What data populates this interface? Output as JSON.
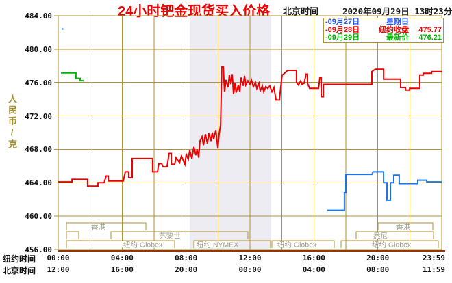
{
  "header": {
    "title": "24小时钯金现货买入价格",
    "tz_label": "北京时间",
    "datetime": "2020年09月29日 13时23分"
  },
  "legend": {
    "rows": [
      {
        "date": "-09月27日",
        "desc": "星期日",
        "value": "",
        "color": "#2255ee"
      },
      {
        "date": "-09月28日",
        "desc": "纽约收盘",
        "value": "475.77",
        "color": "#ff0000"
      },
      {
        "date": "-09月29日",
        "desc": "最新价",
        "value": "476.21",
        "color": "#00b400"
      }
    ]
  },
  "chart_data": {
    "type": "line",
    "title": "24小时钯金现货买入价格",
    "ylabel": "人民币/克",
    "ylim": [
      456,
      484
    ],
    "ytick_step": 4,
    "yticks": [
      "484.00",
      "480.00",
      "476.00",
      "472.00",
      "468.00",
      "464.00",
      "460.00",
      "456.00"
    ],
    "xaxis": {
      "ny_label": "纽约时间",
      "bj_label": "北京时间",
      "ny_ticks": [
        "00:00",
        "04:00",
        "08:00",
        "12:00",
        "16:00",
        "20:00",
        "23:59"
      ],
      "bj_ticks": [
        "12:00",
        "16:00",
        "20:00",
        "00:00",
        "04:00",
        "08:00",
        "11:59"
      ]
    },
    "grid": true,
    "legend_position": "top-right",
    "band_hours": [
      8.23,
      13.33
    ],
    "series": [
      {
        "name": "09月27日",
        "color": "#1976e8",
        "segments": [
          [
            [
              0.21,
              482.4
            ],
            [
              0.32,
              482.4
            ]
          ],
          [
            [
              16.84,
              460.7
            ],
            [
              17.91,
              460.7
            ],
            [
              17.91,
              462.8
            ],
            [
              18.0,
              462.8
            ],
            [
              18.0,
              465.0
            ],
            [
              19.63,
              465.0
            ],
            [
              19.71,
              465.3
            ],
            [
              20.36,
              465.3
            ],
            [
              20.36,
              464.0
            ],
            [
              20.57,
              464.0
            ],
            [
              20.57,
              461.9
            ],
            [
              20.79,
              461.9
            ],
            [
              20.79,
              464.0
            ],
            [
              21.0,
              464.0
            ],
            [
              21.0,
              464.9
            ],
            [
              21.34,
              464.9
            ],
            [
              21.34,
              463.9
            ],
            [
              22.5,
              463.9
            ],
            [
              22.5,
              464.3
            ],
            [
              23.06,
              464.3
            ],
            [
              23.06,
              464.1
            ],
            [
              24.0,
              464.1
            ]
          ]
        ]
      },
      {
        "name": "09月28日",
        "color": "#ee0000",
        "segments": [
          [
            [
              0,
              464.1
            ],
            [
              0.86,
              464.1
            ],
            [
              0.86,
              464.4
            ],
            [
              1.84,
              464.4
            ],
            [
              1.84,
              463.6
            ],
            [
              2.49,
              463.6
            ],
            [
              2.49,
              464.0
            ],
            [
              2.87,
              464.0
            ],
            [
              3.0,
              464.8
            ],
            [
              3.13,
              464.8
            ],
            [
              3.13,
              464.2
            ],
            [
              4.07,
              464.2
            ],
            [
              4.2,
              465.3
            ],
            [
              4.41,
              465.3
            ],
            [
              4.41,
              464.6
            ],
            [
              4.63,
              464.6
            ],
            [
              4.63,
              466.9
            ],
            [
              5.91,
              466.9
            ],
            [
              5.91,
              465.3
            ],
            [
              6.21,
              465.3
            ],
            [
              6.3,
              466.3
            ],
            [
              6.47,
              466.3
            ],
            [
              6.56,
              465.9
            ],
            [
              6.81,
              465.9
            ],
            [
              6.94,
              467.5
            ],
            [
              7.07,
              467.5
            ],
            [
              7.07,
              466.2
            ],
            [
              7.29,
              466.2
            ],
            [
              7.37,
              467.0
            ],
            [
              7.59,
              466.4
            ],
            [
              7.71,
              467.2
            ],
            [
              7.93,
              466.2
            ],
            [
              8.01,
              467.4
            ],
            [
              8.14,
              466.8
            ],
            [
              8.23,
              467.9
            ],
            [
              8.36,
              466.9
            ],
            [
              8.49,
              468.3
            ],
            [
              8.61,
              467.3
            ],
            [
              8.7,
              468.0
            ],
            [
              8.79,
              467.0
            ],
            [
              8.87,
              469.0
            ],
            [
              9.0,
              469.5
            ],
            [
              9.09,
              468.5
            ],
            [
              9.21,
              469.8
            ],
            [
              9.34,
              468.7
            ],
            [
              9.43,
              469.9
            ],
            [
              9.56,
              469.0
            ],
            [
              9.64,
              470.0
            ],
            [
              9.73,
              469.2
            ],
            [
              9.86,
              470.3
            ],
            [
              9.99,
              468.1
            ],
            [
              10.07,
              469.9
            ],
            [
              10.16,
              470.9
            ],
            [
              10.24,
              477.9
            ],
            [
              10.33,
              477.9
            ],
            [
              10.41,
              474.9
            ],
            [
              10.5,
              476.3
            ],
            [
              10.63,
              475.4
            ],
            [
              10.71,
              476.9
            ],
            [
              10.8,
              475.8
            ],
            [
              10.89,
              477.0
            ],
            [
              10.97,
              474.6
            ],
            [
              11.06,
              475.9
            ],
            [
              11.14,
              474.8
            ],
            [
              11.27,
              475.7
            ],
            [
              11.36,
              474.9
            ],
            [
              11.44,
              476.6
            ],
            [
              11.57,
              475.6
            ],
            [
              11.66,
              476.8
            ],
            [
              11.74,
              475.7
            ],
            [
              11.87,
              476.2
            ],
            [
              12.0,
              475.8
            ],
            [
              12.09,
              476.3
            ],
            [
              12.21,
              475.5
            ],
            [
              12.34,
              476.0
            ],
            [
              12.43,
              475.3
            ],
            [
              12.56,
              475.9
            ],
            [
              12.64,
              475.0
            ],
            [
              12.77,
              475.6
            ],
            [
              12.86,
              474.9
            ],
            [
              12.99,
              475.5
            ],
            [
              13.11,
              475.3
            ],
            [
              13.24,
              475.6
            ],
            [
              13.37,
              474.9
            ],
            [
              13.5,
              475.4
            ],
            [
              13.63,
              473.9
            ],
            [
              13.84,
              473.9
            ],
            [
              13.93,
              475.5
            ],
            [
              14.01,
              476.9
            ],
            [
              14.1,
              477.0
            ],
            [
              14.27,
              477.3
            ],
            [
              14.36,
              477.45
            ],
            [
              14.91,
              477.45
            ],
            [
              14.91,
              476.0
            ],
            [
              15.04,
              475.7
            ],
            [
              15.17,
              476.2
            ],
            [
              15.26,
              475.8
            ],
            [
              15.39,
              475.9
            ],
            [
              15.51,
              477.0
            ],
            [
              15.6,
              477.0
            ],
            [
              15.6,
              475.9
            ],
            [
              15.73,
              475.3
            ],
            [
              16.29,
              475.3
            ],
            [
              16.37,
              476.6
            ],
            [
              16.46,
              476.6
            ],
            [
              16.46,
              474.3
            ],
            [
              16.59,
              474.3
            ],
            [
              16.59,
              475.77
            ],
            [
              19.63,
              475.77
            ],
            [
              19.63,
              477.3
            ],
            [
              19.84,
              477.6
            ],
            [
              20.36,
              477.6
            ],
            [
              20.36,
              476.4
            ],
            [
              21.43,
              476.4
            ],
            [
              21.43,
              475.4
            ],
            [
              21.73,
              475.4
            ],
            [
              21.73,
              475.1
            ],
            [
              21.99,
              475.1
            ],
            [
              21.99,
              475.3
            ],
            [
              22.63,
              475.3
            ],
            [
              22.63,
              476.9
            ],
            [
              22.84,
              476.9
            ],
            [
              22.84,
              477.1
            ],
            [
              23.36,
              477.1
            ],
            [
              23.36,
              477.3
            ],
            [
              24,
              477.3
            ]
          ]
        ]
      },
      {
        "name": "09月29日",
        "color": "#00b400",
        "segments": [
          [
            [
              0.17,
              477.15
            ],
            [
              1.11,
              477.15
            ],
            [
              1.11,
              476.5
            ],
            [
              1.37,
              476.5
            ],
            [
              1.37,
              476.21
            ],
            [
              1.59,
              476.21
            ]
          ]
        ]
      }
    ],
    "sessions": [
      {
        "row": 1,
        "label": "香港",
        "x1": 97,
        "x2": 213,
        "labelx": 133
      },
      {
        "row": 1,
        "label": "香港",
        "x1": 552,
        "x2": 632,
        "labelx": 578
      },
      {
        "row": 2,
        "label": "",
        "x1": 97,
        "x2": 115,
        "labelx": 0
      },
      {
        "row": 2,
        "label": "苏黎世",
        "x1": 162,
        "x2": 362,
        "labelx": 232
      },
      {
        "row": 2,
        "label": "悉尼",
        "x1": 520,
        "x2": 633,
        "labelx": 545
      },
      {
        "row": 3,
        "label": "纽约 Globex",
        "x1": 97,
        "x2": 255,
        "labelx": 180
      },
      {
        "row": 3,
        "label": "纽约 NYMEX",
        "x1": 283,
        "x2": 395,
        "labelx": 287
      },
      {
        "row": 3,
        "label": "纽约 Globex",
        "x1": 397,
        "x2": 488,
        "labelx": 405
      },
      {
        "row": 3,
        "label": "纽约 Globex",
        "x1": 498,
        "x2": 640,
        "labelx": 543
      }
    ]
  },
  "colors": {
    "grid": "#b3922f",
    "band": "#ececf2",
    "bottom_line": "#993300",
    "session_text": "#9c9c8a",
    "title": "#ee0000",
    "axis_text": "#111111"
  }
}
